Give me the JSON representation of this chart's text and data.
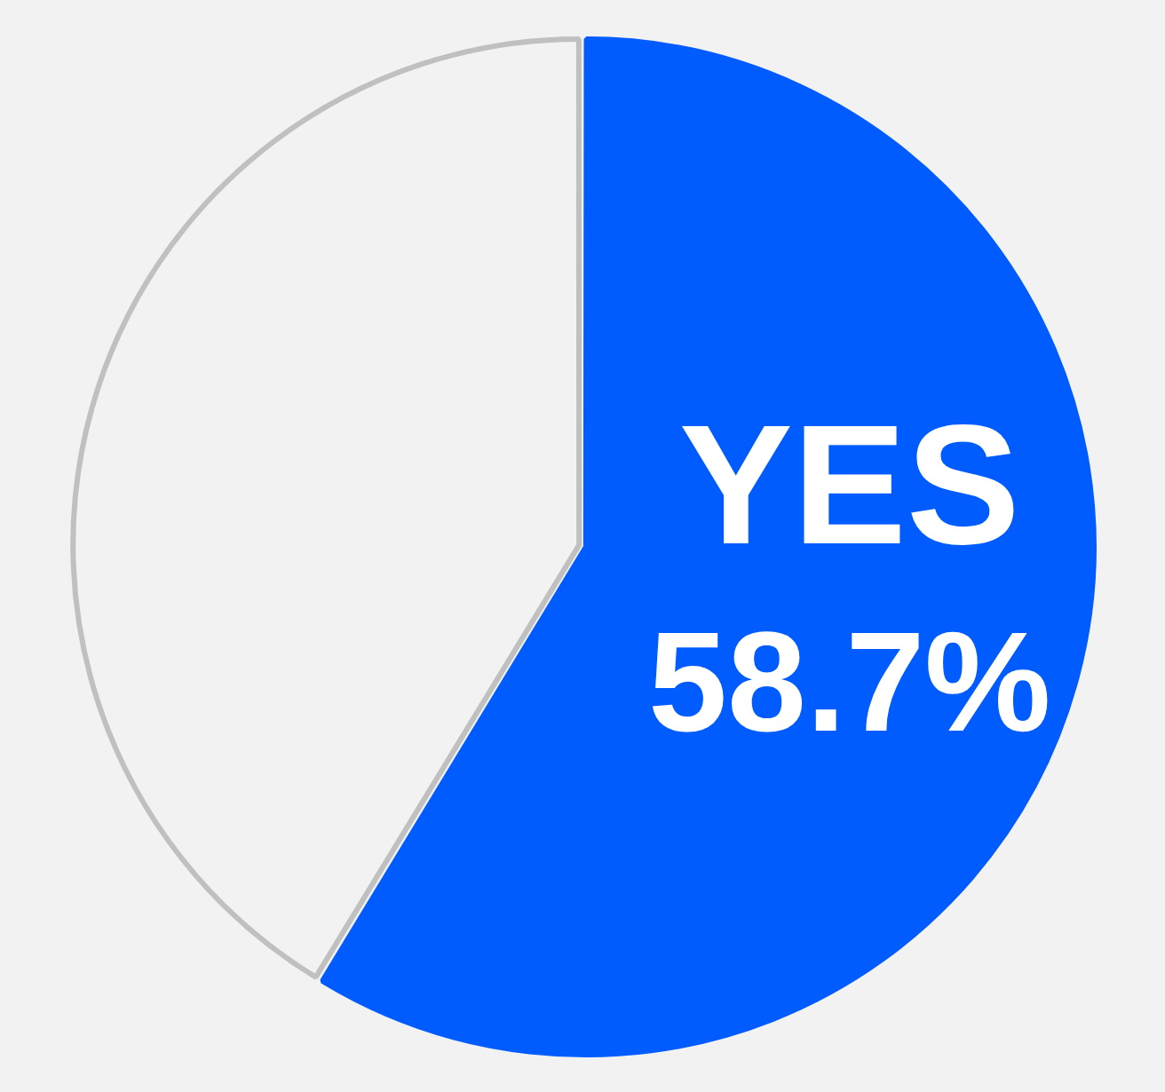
{
  "chart_data": {
    "type": "pie",
    "categories": [
      "YES",
      null
    ],
    "values": [
      58.7,
      41.3
    ],
    "colors": [
      "#005cff",
      "#f2f2f2"
    ],
    "value_labels": [
      "58.7%",
      null
    ],
    "legend": false
  }
}
